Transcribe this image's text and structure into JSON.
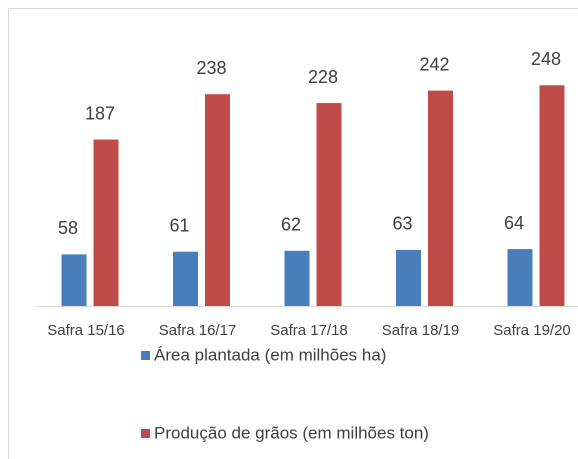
{
  "chart_data": {
    "type": "bar",
    "categories": [
      "Safra 15/16",
      "Safra 16/17",
      "Safra 17/18",
      "Safra 18/19",
      "Safra 19/20"
    ],
    "series": [
      {
        "name": "Área plantada (em milhões ha)",
        "color": "#4a7ebb",
        "values": [
          58,
          61,
          62,
          63,
          64
        ]
      },
      {
        "name": "Produção de grãos (em milhões ton)",
        "color": "#be4b48",
        "values": [
          187,
          238,
          228,
          242,
          248
        ]
      }
    ],
    "legend": "bottom"
  }
}
